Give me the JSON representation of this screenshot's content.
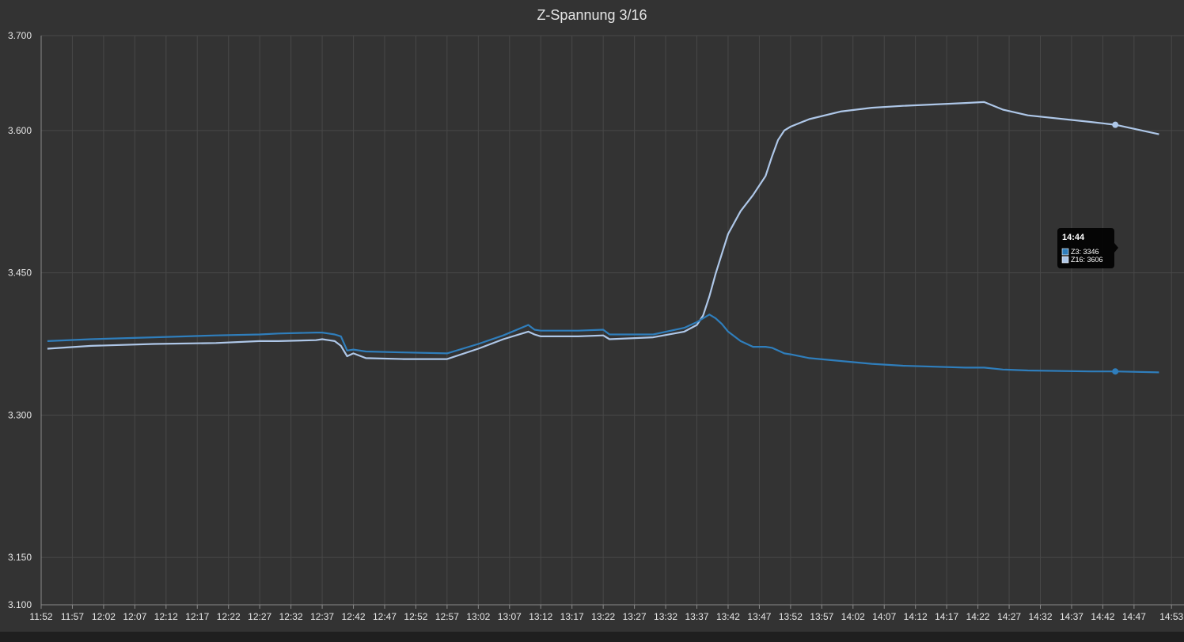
{
  "chart_data": {
    "type": "line",
    "title": "Z-Spannung 3/16",
    "ylim": [
      3.1,
      3.7
    ],
    "yticks": [
      "3.700",
      "3.600",
      "3.450",
      "3.300",
      "3.150",
      "3.100"
    ],
    "ytick_values": [
      3.7,
      3.6,
      3.45,
      3.3,
      3.15,
      3.1
    ],
    "xlim_minutes": [
      712,
      895
    ],
    "x_tick_labels": [
      "11:52",
      "11:57",
      "12:02",
      "12:07",
      "12:12",
      "12:17",
      "12:22",
      "12:27",
      "12:32",
      "12:37",
      "12:42",
      "12:47",
      "12:52",
      "12:57",
      "13:02",
      "13:07",
      "13:12",
      "13:17",
      "13:22",
      "13:27",
      "13:32",
      "13:37",
      "13:42",
      "13:47",
      "13:52",
      "13:57",
      "14:02",
      "14:07",
      "14:12",
      "14:17",
      "14:22",
      "14:27",
      "14:32",
      "14:37",
      "14:42",
      "14:47",
      "14:53"
    ],
    "x": [
      "11:53",
      "12:00",
      "12:10",
      "12:20",
      "12:27",
      "12:30",
      "12:36",
      "12:37",
      "12:38",
      "12:39",
      "12:40",
      "12:41",
      "12:42",
      "12:44",
      "12:50",
      "12:57",
      "13:02",
      "13:06",
      "13:10",
      "13:11",
      "13:12",
      "13:18",
      "13:22",
      "13:23",
      "13:30",
      "13:35",
      "13:37",
      "13:38",
      "13:39",
      "13:40",
      "13:41",
      "13:42",
      "13:44",
      "13:46",
      "13:48",
      "13:49",
      "13:50",
      "13:51",
      "13:52",
      "13:55",
      "14:00",
      "14:05",
      "14:10",
      "14:20",
      "14:23",
      "14:26",
      "14:30",
      "14:40",
      "14:44",
      "14:51"
    ],
    "series": [
      {
        "name": "Z3",
        "color": "#2f7ebc",
        "values": [
          3.378,
          3.38,
          3.382,
          3.384,
          3.385,
          3.386,
          3.387,
          3.387,
          3.386,
          3.385,
          3.383,
          3.368,
          3.369,
          3.367,
          3.366,
          3.365,
          3.375,
          3.384,
          3.395,
          3.39,
          3.389,
          3.389,
          3.39,
          3.385,
          3.385,
          3.392,
          3.398,
          3.402,
          3.406,
          3.402,
          3.396,
          3.388,
          3.378,
          3.372,
          3.372,
          3.371,
          3.368,
          3.365,
          3.364,
          3.36,
          3.357,
          3.354,
          3.352,
          3.35,
          3.35,
          3.348,
          3.347,
          3.346,
          3.346,
          3.345
        ]
      },
      {
        "name": "Z16",
        "color": "#aec7e8",
        "values": [
          3.37,
          3.373,
          3.375,
          3.376,
          3.378,
          3.378,
          3.379,
          3.38,
          3.379,
          3.378,
          3.373,
          3.362,
          3.365,
          3.36,
          3.359,
          3.359,
          3.37,
          3.38,
          3.388,
          3.385,
          3.383,
          3.383,
          3.384,
          3.38,
          3.382,
          3.388,
          3.395,
          3.405,
          3.425,
          3.449,
          3.47,
          3.491,
          3.515,
          3.532,
          3.552,
          3.572,
          3.59,
          3.6,
          3.604,
          3.612,
          3.62,
          3.624,
          3.626,
          3.629,
          3.63,
          3.622,
          3.616,
          3.609,
          3.606,
          3.596
        ]
      }
    ],
    "tooltip": {
      "title": "14:44",
      "lines": [
        "Z3: 3346",
        "Z16: 3606"
      ]
    },
    "grid": true,
    "legend": "none"
  }
}
